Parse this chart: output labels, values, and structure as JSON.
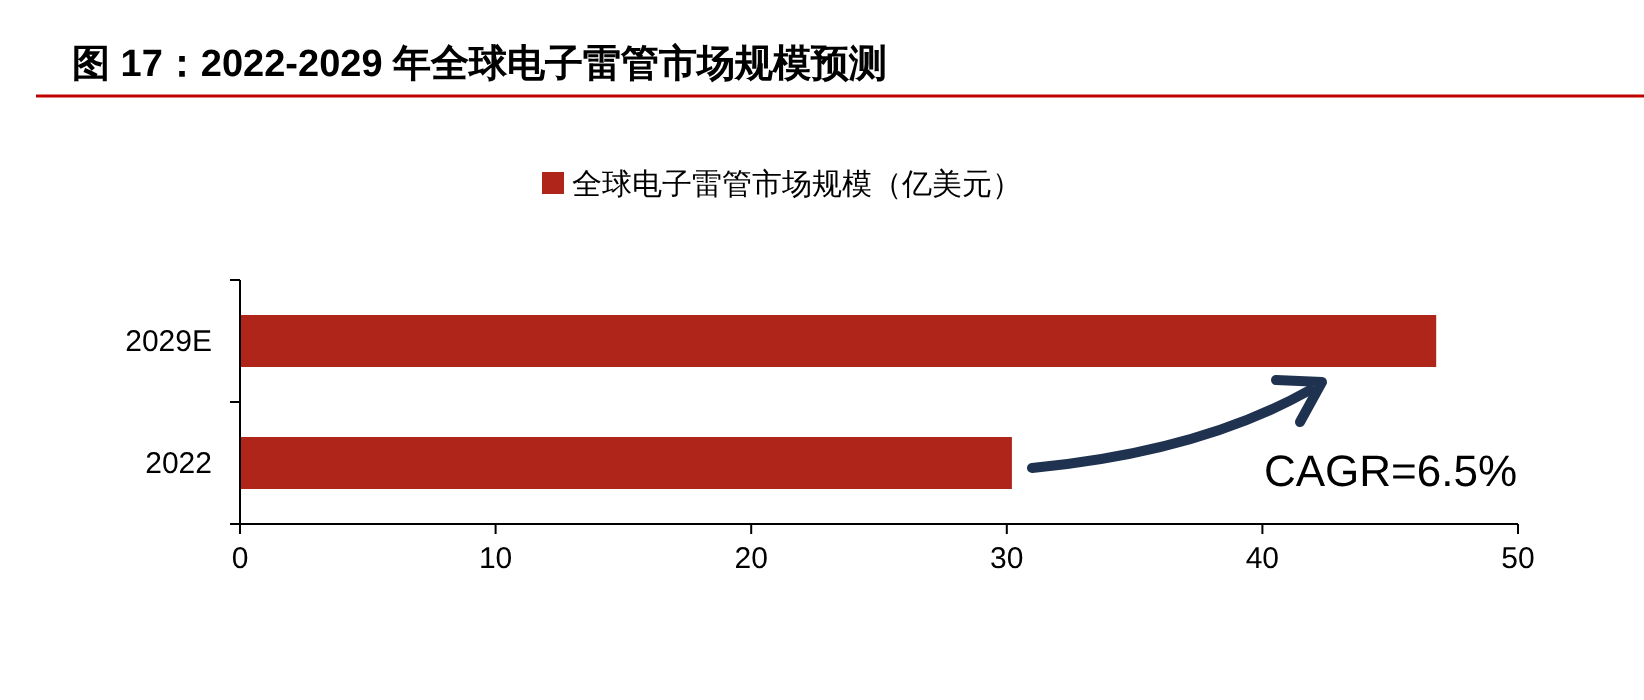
{
  "chart_data": {
    "type": "bar",
    "orientation": "horizontal",
    "title": "图 17：2022-2029 年全球电子雷管市场规模预测",
    "categories": [
      "2029E",
      "2022"
    ],
    "series": [
      {
        "name": "全球电子雷管市场规模（亿美元）",
        "color": "#b0251a",
        "values": [
          46.8,
          30.2
        ]
      }
    ],
    "xlim": [
      0,
      50
    ],
    "xticks": [
      0,
      10,
      20,
      30,
      40,
      50
    ],
    "annotations": [
      "CAGR=6.5%"
    ],
    "legend": "top",
    "grid": false
  }
}
